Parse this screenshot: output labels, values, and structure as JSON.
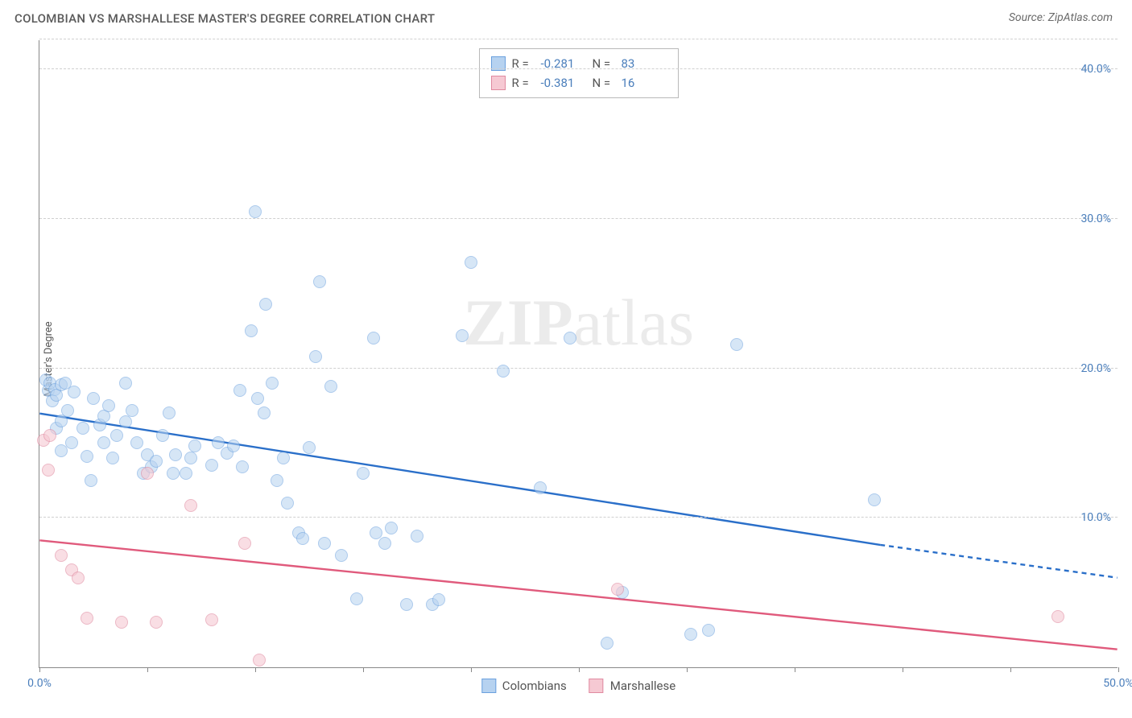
{
  "title": "COLOMBIAN VS MARSHALLESE MASTER'S DEGREE CORRELATION CHART",
  "source": "Source: ZipAtlas.com",
  "y_axis_label": "Master's Degree",
  "watermark": {
    "part1": "ZIP",
    "part2": "atlas"
  },
  "chart": {
    "type": "scatter",
    "xlim": [
      0,
      50
    ],
    "ylim": [
      0,
      42
    ],
    "x_ticks": [
      0,
      5,
      10,
      15,
      20,
      25,
      30,
      35,
      40,
      45,
      50
    ],
    "x_tick_labels": {
      "0": "0.0%",
      "50": "50.0%"
    },
    "y_gridlines": [
      10,
      20,
      30,
      40,
      42
    ],
    "y_tick_labels": {
      "10": "10.0%",
      "20": "20.0%",
      "30": "30.0%",
      "40": "40.0%"
    },
    "background_color": "#ffffff",
    "grid_color": "#d0d0d0",
    "axis_color": "#888888"
  },
  "series": [
    {
      "name": "Colombians",
      "color_fill": "#b6d2f0",
      "color_stroke": "#6aa0de",
      "opacity": 0.55,
      "marker_radius": 8,
      "stats": {
        "R": "-0.281",
        "N": "83"
      },
      "trend": {
        "x1": 0,
        "y1": 17.0,
        "x2": 39,
        "y2": 8.2,
        "x3": 50,
        "y3": 6.0,
        "color": "#2a6fc9",
        "width": 2.4,
        "dashed_after_x": 39
      },
      "points": [
        [
          0.3,
          19.2
        ],
        [
          0.4,
          18.5
        ],
        [
          0.5,
          19.0
        ],
        [
          0.6,
          17.8
        ],
        [
          0.7,
          18.6
        ],
        [
          0.8,
          18.2
        ],
        [
          0.8,
          16.0
        ],
        [
          1.0,
          18.9
        ],
        [
          1.0,
          16.5
        ],
        [
          1.0,
          14.5
        ],
        [
          1.2,
          19.0
        ],
        [
          1.3,
          17.2
        ],
        [
          1.5,
          15.0
        ],
        [
          1.6,
          18.4
        ],
        [
          2.0,
          16.0
        ],
        [
          2.2,
          14.1
        ],
        [
          2.4,
          12.5
        ],
        [
          2.5,
          18.0
        ],
        [
          2.8,
          16.2
        ],
        [
          3.0,
          15.0
        ],
        [
          3.0,
          16.8
        ],
        [
          3.2,
          17.5
        ],
        [
          3.4,
          14.0
        ],
        [
          3.6,
          15.5
        ],
        [
          4.0,
          19.0
        ],
        [
          4.0,
          16.4
        ],
        [
          4.3,
          17.2
        ],
        [
          4.5,
          15.0
        ],
        [
          4.8,
          13.0
        ],
        [
          5.0,
          14.2
        ],
        [
          5.2,
          13.4
        ],
        [
          5.4,
          13.8
        ],
        [
          5.7,
          15.5
        ],
        [
          6.0,
          17.0
        ],
        [
          6.2,
          13.0
        ],
        [
          6.3,
          14.2
        ],
        [
          6.8,
          13.0
        ],
        [
          7.0,
          14.0
        ],
        [
          7.2,
          14.8
        ],
        [
          8.0,
          13.5
        ],
        [
          8.3,
          15.0
        ],
        [
          8.7,
          14.3
        ],
        [
          9.0,
          14.8
        ],
        [
          9.3,
          18.5
        ],
        [
          9.4,
          13.4
        ],
        [
          9.8,
          22.5
        ],
        [
          10.0,
          30.5
        ],
        [
          10.1,
          18.0
        ],
        [
          10.4,
          17.0
        ],
        [
          10.5,
          24.3
        ],
        [
          10.8,
          19.0
        ],
        [
          11.0,
          12.5
        ],
        [
          11.3,
          14.0
        ],
        [
          11.5,
          11.0
        ],
        [
          12.0,
          9.0
        ],
        [
          12.2,
          8.6
        ],
        [
          12.5,
          14.7
        ],
        [
          12.8,
          20.8
        ],
        [
          13.0,
          25.8
        ],
        [
          13.2,
          8.3
        ],
        [
          13.5,
          18.8
        ],
        [
          14.0,
          7.5
        ],
        [
          14.7,
          4.6
        ],
        [
          15.0,
          13.0
        ],
        [
          15.5,
          22.0
        ],
        [
          15.6,
          9.0
        ],
        [
          16.0,
          8.3
        ],
        [
          16.3,
          9.3
        ],
        [
          17.0,
          4.2
        ],
        [
          17.5,
          8.8
        ],
        [
          18.2,
          4.2
        ],
        [
          18.5,
          4.5
        ],
        [
          19.6,
          22.2
        ],
        [
          20.0,
          27.1
        ],
        [
          21.5,
          19.8
        ],
        [
          23.2,
          12.0
        ],
        [
          24.6,
          22.0
        ],
        [
          26.3,
          1.6
        ],
        [
          27.0,
          5.0
        ],
        [
          30.2,
          2.2
        ],
        [
          31.0,
          2.5
        ],
        [
          32.3,
          21.6
        ],
        [
          38.7,
          11.2
        ]
      ]
    },
    {
      "name": "Marshallese",
      "color_fill": "#f6c9d3",
      "color_stroke": "#e08aa0",
      "opacity": 0.6,
      "marker_radius": 8,
      "stats": {
        "R": "-0.381",
        "N": "16"
      },
      "trend": {
        "x1": 0,
        "y1": 8.5,
        "x2": 50,
        "y2": 1.2,
        "color": "#e05a7c",
        "width": 2.4
      },
      "points": [
        [
          0.2,
          15.2
        ],
        [
          0.4,
          13.2
        ],
        [
          0.5,
          15.5
        ],
        [
          1.0,
          7.5
        ],
        [
          1.5,
          6.5
        ],
        [
          1.8,
          6.0
        ],
        [
          2.2,
          3.3
        ],
        [
          3.8,
          3.0
        ],
        [
          5.4,
          3.0
        ],
        [
          7.0,
          10.8
        ],
        [
          8.0,
          3.2
        ],
        [
          9.5,
          8.3
        ],
        [
          10.2,
          0.5
        ],
        [
          26.8,
          5.2
        ],
        [
          47.2,
          3.4
        ],
        [
          5.0,
          13.0
        ]
      ]
    }
  ],
  "legend": {
    "items": [
      "Colombians",
      "Marshallese"
    ]
  },
  "stats_labels": {
    "R": "R =",
    "N": "N ="
  }
}
